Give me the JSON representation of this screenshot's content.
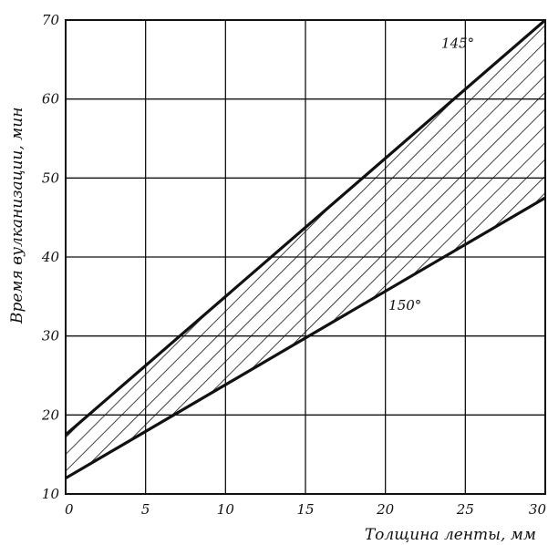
{
  "chart_data": {
    "type": "line",
    "title": "",
    "xlabel": "Толщина ленты, мм",
    "ylabel": "Время вулканизации, мин",
    "xlim": [
      0,
      30
    ],
    "ylim": [
      10,
      70
    ],
    "x_ticks": [
      "0",
      "5",
      "10",
      "15",
      "20",
      "25",
      "30"
    ],
    "y_ticks": [
      "10",
      "20",
      "30",
      "40",
      "50",
      "60",
      "70"
    ],
    "grid": true,
    "band_between_series": "hatched",
    "series": [
      {
        "name": "145°",
        "x": [
          0,
          30
        ],
        "y": [
          17.5,
          70
        ]
      },
      {
        "name": "150°",
        "x": [
          0,
          30
        ],
        "y": [
          12,
          47.5
        ]
      }
    ]
  }
}
